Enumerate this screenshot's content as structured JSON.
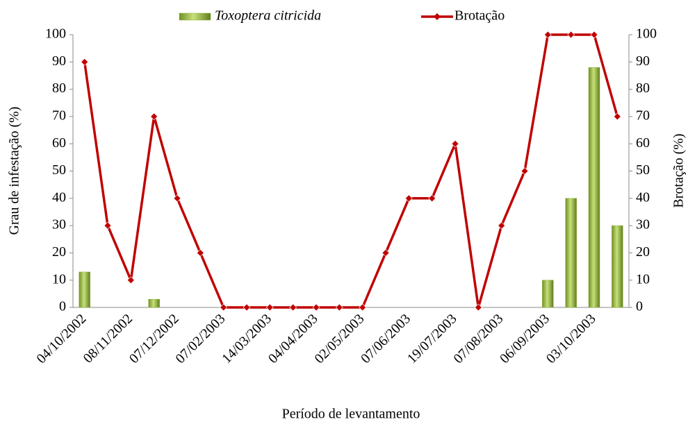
{
  "chart_data": {
    "type": "bar-line",
    "x_label": "Período de levantamento",
    "y_label": "Grau de infestação (%)",
    "y2_label": "Brotação (%)",
    "categories": [
      "04/10/2002",
      null,
      "08/11/2002",
      null,
      "07/12/2002",
      null,
      "07/02/2003",
      null,
      "14/03/2003",
      null,
      "04/04/2003",
      null,
      "02/05/2003",
      null,
      "07/06/2003",
      null,
      "19/07/2003",
      null,
      "07/08/2003",
      null,
      "06/09/2003",
      null,
      "03/10/2003",
      null
    ],
    "series": [
      {
        "name": "Toxoptera citricida",
        "type": "bar",
        "color": "#8db33a",
        "axis": "y",
        "values": [
          13,
          0,
          0,
          3,
          0,
          0,
          0,
          0,
          0,
          0,
          0,
          0,
          0,
          0,
          0,
          0,
          0,
          0,
          0,
          0,
          10,
          40,
          88,
          30
        ]
      },
      {
        "name": "Brotação",
        "type": "line",
        "color": "#c00000",
        "axis": "y2",
        "values": [
          90,
          30,
          10,
          70,
          40,
          20,
          0,
          0,
          0,
          0,
          0,
          0,
          0,
          20,
          40,
          40,
          60,
          0,
          30,
          50,
          100,
          100,
          100,
          70
        ]
      }
    ],
    "ylim": [
      0,
      100
    ],
    "yticks": [
      0,
      10,
      20,
      30,
      40,
      50,
      60,
      70,
      80,
      90,
      100
    ],
    "y2lim": [
      0,
      100
    ],
    "y2ticks": [
      0,
      10,
      20,
      30,
      40,
      50,
      60,
      70,
      80,
      90,
      100
    ],
    "grid": false,
    "legend": "top"
  }
}
